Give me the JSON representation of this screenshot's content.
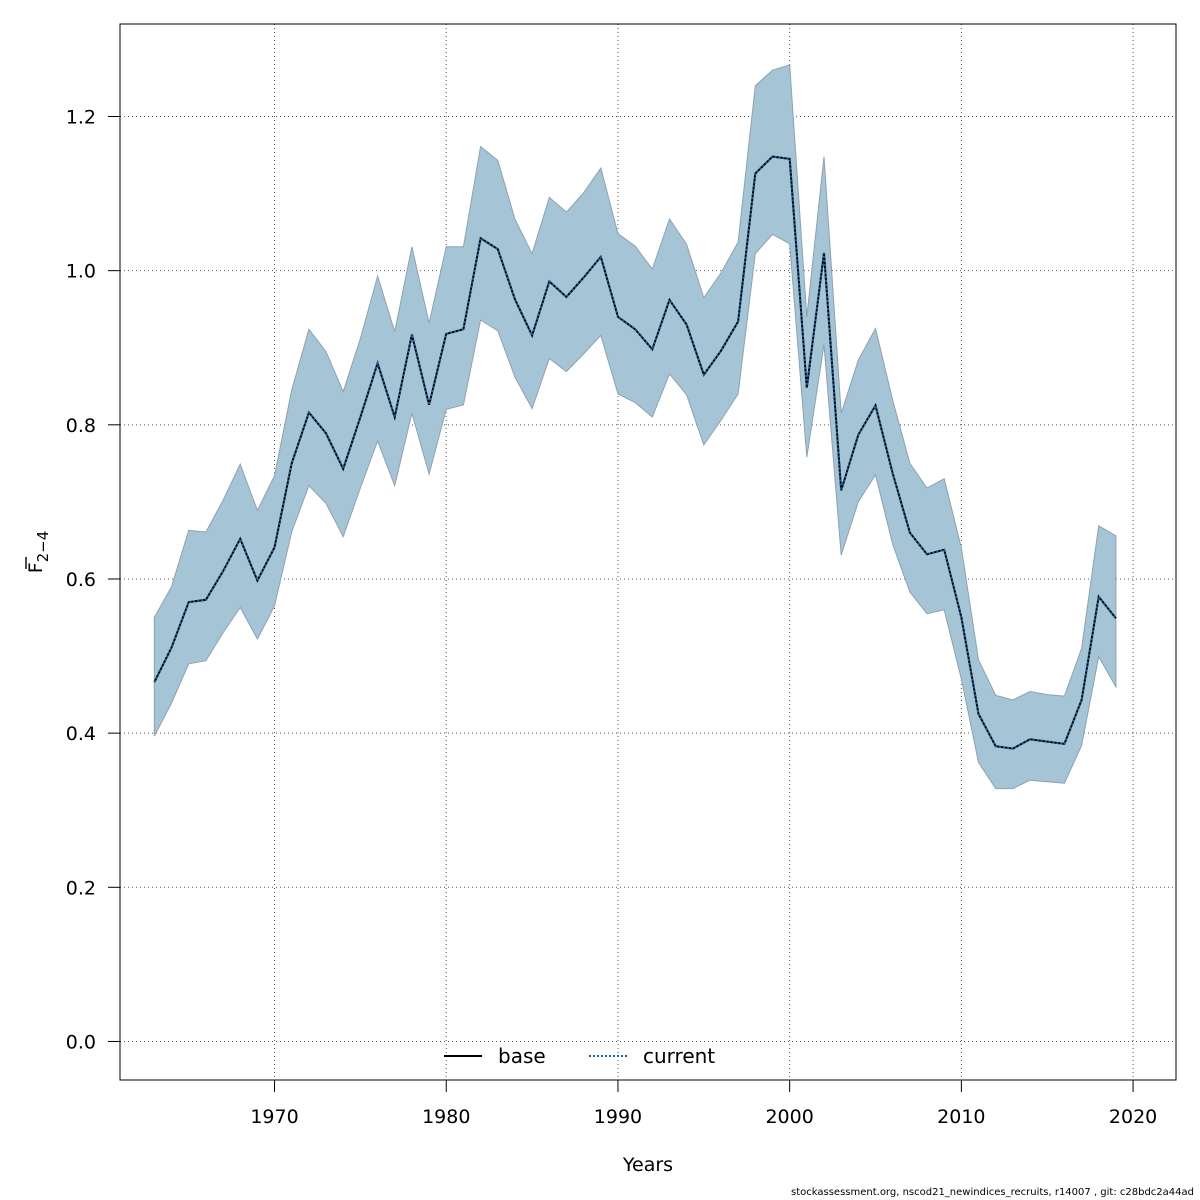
{
  "chart_data": {
    "type": "line",
    "title": "",
    "xlabel": "Years",
    "ylabel": "F̄2–4",
    "ylabel_main": "F",
    "ylabel_sub": "2−4",
    "xlim": [
      1961,
      2022.5
    ],
    "ylim": [
      -0.05,
      1.32
    ],
    "x_ticks": [
      1970,
      1980,
      1990,
      2000,
      2010,
      2020
    ],
    "y_ticks": [
      0.0,
      0.2,
      0.4,
      0.6,
      0.8,
      1.0,
      1.2
    ],
    "y_tick_labels": [
      "0.0",
      "0.2",
      "0.4",
      "0.6",
      "0.8",
      "1.0",
      "1.2"
    ],
    "grid": true,
    "legend": {
      "placement": "bottom-center",
      "entries": [
        "base",
        "current"
      ]
    },
    "band_color": "#a5c4d6",
    "band_edge_color": "#8ea2b0",
    "base_color": "#000000",
    "current_color": "#1f5f99",
    "years": [
      1963,
      1964,
      1965,
      1966,
      1967,
      1968,
      1969,
      1970,
      1971,
      1972,
      1973,
      1974,
      1975,
      1976,
      1977,
      1978,
      1979,
      1980,
      1981,
      1982,
      1983,
      1984,
      1985,
      1986,
      1987,
      1988,
      1989,
      1990,
      1991,
      1992,
      1993,
      1994,
      1995,
      1996,
      1997,
      1998,
      1999,
      2000,
      2001,
      2002,
      2003,
      2004,
      2005,
      2006,
      2007,
      2008,
      2009,
      2010,
      2011,
      2012,
      2013,
      2014,
      2015,
      2016,
      2017,
      2018,
      2019
    ],
    "upper": [
      0.55,
      0.59,
      0.663,
      0.661,
      0.702,
      0.749,
      0.689,
      0.734,
      0.845,
      0.924,
      0.895,
      0.843,
      0.912,
      0.993,
      0.921,
      1.031,
      0.932,
      1.031,
      1.031,
      1.161,
      1.143,
      1.067,
      1.022,
      1.095,
      1.076,
      1.101,
      1.133,
      1.048,
      1.032,
      1.002,
      1.067,
      1.034,
      0.965,
      0.997,
      1.037,
      1.24,
      1.26,
      1.267,
      0.94,
      1.148,
      0.815,
      0.884,
      0.925,
      0.832,
      0.75,
      0.718,
      0.73,
      0.64,
      0.495,
      0.449,
      0.443,
      0.454,
      0.45,
      0.448,
      0.51,
      0.669,
      0.656
    ],
    "lower": [
      0.396,
      0.439,
      0.49,
      0.494,
      0.53,
      0.563,
      0.522,
      0.565,
      0.661,
      0.721,
      0.698,
      0.655,
      0.718,
      0.779,
      0.721,
      0.815,
      0.736,
      0.82,
      0.826,
      0.936,
      0.922,
      0.862,
      0.821,
      0.886,
      0.869,
      0.892,
      0.916,
      0.84,
      0.829,
      0.81,
      0.866,
      0.839,
      0.774,
      0.806,
      0.84,
      1.022,
      1.047,
      1.035,
      0.758,
      0.904,
      0.631,
      0.7,
      0.735,
      0.645,
      0.583,
      0.555,
      0.56,
      0.47,
      0.362,
      0.328,
      0.328,
      0.339,
      0.337,
      0.335,
      0.384,
      0.499,
      0.46
    ],
    "series": [
      {
        "name": "base",
        "style": "solid",
        "values": [
          0.466,
          0.511,
          0.57,
          0.573,
          0.61,
          0.652,
          0.598,
          0.641,
          0.75,
          0.816,
          0.789,
          0.743,
          0.81,
          0.88,
          0.81,
          0.917,
          0.826,
          0.918,
          0.924,
          1.042,
          1.028,
          0.963,
          0.916,
          0.986,
          0.966,
          0.991,
          1.018,
          0.94,
          0.924,
          0.898,
          0.962,
          0.93,
          0.865,
          0.896,
          0.934,
          1.126,
          1.148,
          1.145,
          0.848,
          1.023,
          0.715,
          0.787,
          0.825,
          0.737,
          0.66,
          0.632,
          0.638,
          0.55,
          0.425,
          0.383,
          0.38,
          0.392,
          0.389,
          0.386,
          0.443,
          0.577,
          0.549
        ]
      },
      {
        "name": "current",
        "style": "dotted",
        "values": [
          0.466,
          0.511,
          0.57,
          0.573,
          0.61,
          0.652,
          0.598,
          0.641,
          0.75,
          0.816,
          0.789,
          0.743,
          0.81,
          0.88,
          0.81,
          0.917,
          0.826,
          0.918,
          0.924,
          1.042,
          1.028,
          0.963,
          0.916,
          0.986,
          0.966,
          0.991,
          1.018,
          0.94,
          0.924,
          0.898,
          0.962,
          0.93,
          0.865,
          0.896,
          0.934,
          1.126,
          1.148,
          1.145,
          0.848,
          1.023,
          0.715,
          0.787,
          0.825,
          0.737,
          0.66,
          0.632,
          0.638,
          0.55,
          0.425,
          0.383,
          0.38,
          0.392,
          0.389,
          0.386,
          0.443,
          0.577,
          0.549
        ]
      }
    ]
  },
  "footer": "stockassessment.org, nscod21_newindices_recruits, r14007 , git: c28bdc2a44ad"
}
